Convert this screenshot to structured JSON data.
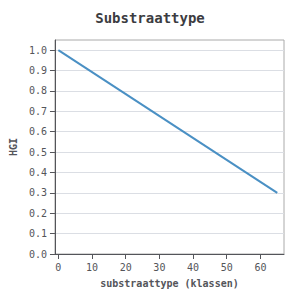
{
  "chart_data": {
    "type": "line",
    "title": "Substraattype",
    "xlabel": "substraattype (klassen)",
    "ylabel": "HGI",
    "x": [
      0,
      65
    ],
    "values": [
      1.0,
      0.3
    ],
    "color": "#4a90c4",
    "xlim": [
      -1,
      67
    ],
    "xticks": [
      0,
      10,
      20,
      30,
      40,
      50,
      60
    ],
    "ylim": [
      0.0,
      1.05
    ],
    "yticks": [
      {
        "value": 0.0,
        "label": "0.0"
      },
      0.1,
      0.2,
      0.3,
      0.4,
      0.5,
      0.6,
      0.7,
      0.8,
      0.9,
      {
        "value": 1.0,
        "label": "1.0"
      }
    ],
    "grid": true
  }
}
